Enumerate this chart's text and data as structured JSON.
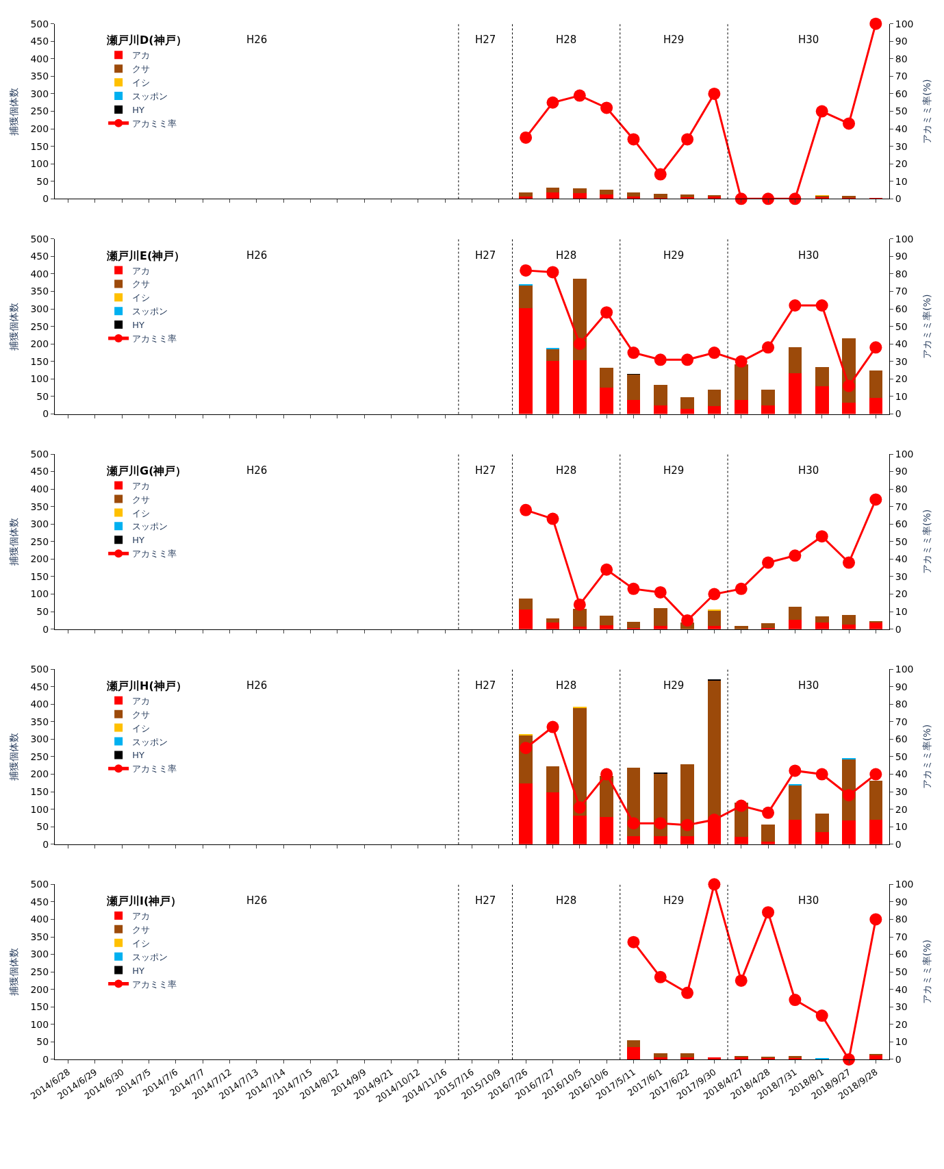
{
  "chart_data": [
    {
      "type": "bar",
      "title": "瀬戸川D(神戸）",
      "ylabel": "捕獲個体数",
      "y2label": "アカミミ率(%)",
      "stacked": true,
      "legend": "top left",
      "tick_labels": "y",
      "categories": [
        "2014/6/28",
        "2014/6/29",
        "2014/6/30",
        "2014/7/5",
        "2014/7/6",
        "2014/7/7",
        "2014/7/12",
        "2014/7/13",
        "2014/7/14",
        "2014/7/15",
        "2014/8/12",
        "2014/9/9",
        "2014/9/21",
        "2014/10/12",
        "2014/11/16",
        "2015/7/16",
        "2015/10/9",
        "2016/7/26",
        "2016/7/27",
        "2016/10/5",
        "2016/10/6",
        "2017/5/11",
        "2017/6/1",
        "2017/6/22",
        "2017/9/30",
        "2018/4/27",
        "2018/4/28",
        "2018/7/31",
        "2018/8/1",
        "2018/9/27",
        "2018/9/28"
      ],
      "ylim": [
        0,
        500
      ],
      "yticks": [
        0,
        50,
        100,
        150,
        200,
        250,
        300,
        350,
        400,
        450,
        500
      ],
      "y2lim": [
        0,
        100
      ],
      "y2ticks": [
        0,
        10,
        20,
        30,
        40,
        50,
        60,
        70,
        80,
        90,
        100
      ],
      "annotations": [
        "H26",
        "H27",
        "H28",
        "H29",
        "H30"
      ],
      "series": [
        {
          "name": "アカ",
          "color": "#ff0000",
          "values": [
            null,
            null,
            null,
            null,
            null,
            null,
            null,
            null,
            null,
            null,
            null,
            null,
            null,
            null,
            null,
            null,
            null,
            6,
            18,
            17,
            13,
            6,
            2,
            4,
            7,
            0,
            0,
            0,
            5,
            3,
            3
          ]
        },
        {
          "name": "クサ",
          "color": "#9c4a0a",
          "values": [
            null,
            null,
            null,
            null,
            null,
            null,
            null,
            null,
            null,
            null,
            null,
            null,
            null,
            null,
            null,
            null,
            null,
            12,
            14,
            13,
            13,
            13,
            13,
            9,
            4,
            0,
            0,
            0,
            5,
            5,
            0
          ]
        },
        {
          "name": "イシ",
          "color": "#ffc000",
          "values": [
            null,
            null,
            null,
            null,
            null,
            null,
            null,
            null,
            null,
            null,
            null,
            null,
            null,
            null,
            null,
            null,
            null,
            0,
            0,
            0,
            0,
            0,
            0,
            0,
            0,
            0,
            0,
            0,
            1,
            0,
            0
          ]
        },
        {
          "name": "スッポン",
          "color": "#00b0f0",
          "values": [
            null,
            null,
            null,
            null,
            null,
            null,
            null,
            null,
            null,
            null,
            null,
            null,
            null,
            null,
            null,
            null,
            null,
            0,
            0,
            0,
            0,
            0,
            0,
            0,
            0,
            0,
            0,
            0,
            0,
            0,
            0
          ]
        },
        {
          "name": "HY",
          "color": "#000000",
          "values": [
            null,
            null,
            null,
            null,
            null,
            null,
            null,
            null,
            null,
            null,
            null,
            null,
            null,
            null,
            null,
            null,
            null,
            0,
            0,
            0,
            0,
            0,
            0,
            0,
            0,
            0,
            0,
            0,
            0,
            0,
            0
          ]
        },
        {
          "name": "アカミミ率",
          "type": "line",
          "axis": "y2",
          "marker": "circle",
          "line_style": "solid",
          "color": "#ff0000",
          "values": [
            null,
            null,
            null,
            null,
            null,
            null,
            null,
            null,
            null,
            null,
            null,
            null,
            null,
            null,
            null,
            null,
            null,
            35,
            55,
            59,
            52,
            34,
            14,
            34,
            60,
            0,
            0,
            0,
            50,
            43,
            100
          ]
        }
      ]
    },
    {
      "type": "bar",
      "title": "瀬戸川E(神戸）",
      "ylabel": "捕獲個体数",
      "y2label": "アカミミ率(%)",
      "stacked": true,
      "legend": "top left",
      "tick_labels": "y",
      "categories": [
        "2014/6/28",
        "2014/6/29",
        "2014/6/30",
        "2014/7/5",
        "2014/7/6",
        "2014/7/7",
        "2014/7/12",
        "2014/7/13",
        "2014/7/14",
        "2014/7/15",
        "2014/8/12",
        "2014/9/9",
        "2014/9/21",
        "2014/10/12",
        "2014/11/16",
        "2015/7/16",
        "2015/10/9",
        "2016/7/26",
        "2016/7/27",
        "2016/10/5",
        "2016/10/6",
        "2017/5/11",
        "2017/6/1",
        "2017/6/22",
        "2017/9/30",
        "2018/4/27",
        "2018/4/28",
        "2018/7/31",
        "2018/8/1",
        "2018/9/27",
        "2018/9/28"
      ],
      "ylim": [
        0,
        500
      ],
      "yticks": [
        0,
        50,
        100,
        150,
        200,
        250,
        300,
        350,
        400,
        450,
        500
      ],
      "y2lim": [
        0,
        100
      ],
      "y2ticks": [
        0,
        10,
        20,
        30,
        40,
        50,
        60,
        70,
        80,
        90,
        100
      ],
      "annotations": [
        "H26",
        "H27",
        "H28",
        "H29",
        "H30"
      ],
      "series": [
        {
          "name": "アカ",
          "color": "#ff0000",
          "values": [
            null,
            null,
            null,
            null,
            null,
            null,
            null,
            null,
            null,
            null,
            null,
            null,
            null,
            null,
            null,
            null,
            null,
            303,
            151,
            154,
            75,
            40,
            25,
            14,
            23,
            40,
            25,
            117,
            80,
            33,
            46
          ]
        },
        {
          "name": "クサ",
          "color": "#9c4a0a",
          "values": [
            null,
            null,
            null,
            null,
            null,
            null,
            null,
            null,
            null,
            null,
            null,
            null,
            null,
            null,
            null,
            null,
            null,
            65,
            35,
            232,
            57,
            73,
            58,
            34,
            46,
            102,
            44,
            74,
            54,
            184,
            78
          ]
        },
        {
          "name": "イシ",
          "color": "#ffc000",
          "values": [
            null,
            null,
            null,
            null,
            null,
            null,
            null,
            null,
            null,
            null,
            null,
            null,
            null,
            null,
            null,
            null,
            null,
            0,
            0,
            0,
            0,
            0,
            0,
            0,
            0,
            0,
            0,
            0,
            0,
            0,
            0
          ]
        },
        {
          "name": "スッポン",
          "color": "#00b0f0",
          "values": [
            null,
            null,
            null,
            null,
            null,
            null,
            null,
            null,
            null,
            null,
            null,
            null,
            null,
            null,
            null,
            null,
            null,
            3,
            2,
            0,
            0,
            0,
            0,
            0,
            0,
            0,
            0,
            0,
            0,
            0,
            0
          ]
        },
        {
          "name": "HY",
          "color": "#000000",
          "values": [
            null,
            null,
            null,
            null,
            null,
            null,
            null,
            null,
            null,
            null,
            null,
            null,
            null,
            null,
            null,
            null,
            null,
            0,
            0,
            0,
            0,
            1,
            0,
            0,
            0,
            0,
            0,
            0,
            0,
            0,
            0
          ]
        },
        {
          "name": "アカミミ率",
          "type": "line",
          "axis": "y2",
          "marker": "circle",
          "line_style": "solid",
          "color": "#ff0000",
          "values": [
            null,
            null,
            null,
            null,
            null,
            null,
            null,
            null,
            null,
            null,
            null,
            null,
            null,
            null,
            null,
            null,
            null,
            82,
            81,
            40,
            58,
            35,
            31,
            31,
            35,
            30,
            38,
            62,
            62,
            16,
            38
          ]
        }
      ]
    },
    {
      "type": "bar",
      "title": "瀬戸川G(神戸）",
      "ylabel": "捕獲個体数",
      "y2label": "アカミミ率(%)",
      "stacked": true,
      "legend": "top left",
      "tick_labels": "y",
      "categories": [
        "2014/6/28",
        "2014/6/29",
        "2014/6/30",
        "2014/7/5",
        "2014/7/6",
        "2014/7/7",
        "2014/7/12",
        "2014/7/13",
        "2014/7/14",
        "2014/7/15",
        "2014/8/12",
        "2014/9/9",
        "2014/9/21",
        "2014/10/12",
        "2014/11/16",
        "2015/7/16",
        "2015/10/9",
        "2016/7/26",
        "2016/7/27",
        "2016/10/5",
        "2016/10/6",
        "2017/5/11",
        "2017/6/1",
        "2017/6/22",
        "2017/9/30",
        "2018/4/27",
        "2018/4/28",
        "2018/7/31",
        "2018/8/1",
        "2018/9/27",
        "2018/9/28"
      ],
      "ylim": [
        0,
        500
      ],
      "yticks": [
        0,
        50,
        100,
        150,
        200,
        250,
        300,
        350,
        400,
        450,
        500
      ],
      "y2lim": [
        0,
        100
      ],
      "y2ticks": [
        0,
        10,
        20,
        30,
        40,
        50,
        60,
        70,
        80,
        90,
        100
      ],
      "annotations": [
        "H26",
        "H27",
        "H28",
        "H29",
        "H30"
      ],
      "series": [
        {
          "name": "アカ",
          "color": "#ff0000",
          "values": [
            null,
            null,
            null,
            null,
            null,
            null,
            null,
            null,
            null,
            null,
            null,
            null,
            null,
            null,
            null,
            null,
            null,
            57,
            19,
            8,
            12,
            3,
            10,
            null,
            10,
            null,
            3,
            26,
            19,
            14,
            18
          ]
        },
        {
          "name": "クサ",
          "color": "#9c4a0a",
          "values": [
            null,
            null,
            null,
            null,
            null,
            null,
            null,
            null,
            null,
            null,
            null,
            null,
            null,
            null,
            null,
            null,
            null,
            30,
            11,
            50,
            27,
            18,
            49,
            19,
            44,
            9,
            14,
            38,
            18,
            26,
            5
          ]
        },
        {
          "name": "イシ",
          "color": "#ffc000",
          "values": [
            null,
            null,
            null,
            null,
            null,
            null,
            null,
            null,
            null,
            null,
            null,
            null,
            null,
            null,
            null,
            null,
            null,
            0,
            0,
            0,
            0,
            0,
            0,
            0,
            1,
            0,
            0,
            0,
            0,
            0,
            0
          ]
        },
        {
          "name": "スッポン",
          "color": "#00b0f0",
          "values": [
            null,
            null,
            null,
            null,
            null,
            null,
            null,
            null,
            null,
            null,
            null,
            null,
            null,
            null,
            null,
            null,
            null,
            0,
            0,
            0,
            0,
            0,
            0,
            0,
            0,
            0,
            0,
            0,
            0,
            0,
            0
          ]
        },
        {
          "name": "HY",
          "color": "#000000",
          "values": [
            null,
            null,
            null,
            null,
            null,
            null,
            null,
            null,
            null,
            null,
            null,
            null,
            null,
            null,
            null,
            null,
            null,
            0,
            0,
            0,
            0,
            0,
            0,
            0,
            0,
            0,
            0,
            0,
            0,
            0,
            0
          ]
        },
        {
          "name": "アカミミ率",
          "type": "line",
          "axis": "y2",
          "marker": "circle",
          "line_style": "solid",
          "color": "#ff0000",
          "values": [
            null,
            null,
            null,
            null,
            null,
            null,
            null,
            null,
            null,
            null,
            null,
            null,
            null,
            null,
            null,
            null,
            null,
            68,
            63,
            14,
            34,
            23,
            21,
            5,
            20,
            23,
            38,
            42,
            53,
            38,
            74
          ]
        }
      ]
    },
    {
      "type": "bar",
      "title": "瀬戸川H(神戸）",
      "ylabel": "捕獲個体数",
      "y2label": "アカミミ率(%)",
      "stacked": true,
      "legend": "top left",
      "tick_labels": "y",
      "categories": [
        "2014/6/28",
        "2014/6/29",
        "2014/6/30",
        "2014/7/5",
        "2014/7/6",
        "2014/7/7",
        "2014/7/12",
        "2014/7/13",
        "2014/7/14",
        "2014/7/15",
        "2014/8/12",
        "2014/9/9",
        "2014/9/21",
        "2014/10/12",
        "2014/11/16",
        "2015/7/16",
        "2015/10/9",
        "2016/7/26",
        "2016/7/27",
        "2016/10/5",
        "2016/10/6",
        "2017/5/11",
        "2017/6/1",
        "2017/6/22",
        "2017/9/30",
        "2018/4/27",
        "2018/4/28",
        "2018/7/31",
        "2018/8/1",
        "2018/9/27",
        "2018/9/28"
      ],
      "ylim": [
        0,
        500
      ],
      "yticks": [
        0,
        50,
        100,
        150,
        200,
        250,
        300,
        350,
        400,
        450,
        500
      ],
      "y2lim": [
        0,
        100
      ],
      "y2ticks": [
        0,
        10,
        20,
        30,
        40,
        50,
        60,
        70,
        80,
        90,
        100
      ],
      "annotations": [
        "H26",
        "H27",
        "H28",
        "H29",
        "H30"
      ],
      "series": [
        {
          "name": "アカ",
          "color": "#ff0000",
          "values": [
            null,
            null,
            null,
            null,
            null,
            null,
            null,
            null,
            null,
            null,
            null,
            null,
            null,
            null,
            null,
            null,
            null,
            173,
            148,
            82,
            77,
            24,
            24,
            24,
            68,
            21,
            8,
            71,
            34,
            68,
            71
          ]
        },
        {
          "name": "クサ",
          "color": "#9c4a0a",
          "values": [
            null,
            null,
            null,
            null,
            null,
            null,
            null,
            null,
            null,
            null,
            null,
            null,
            null,
            null,
            null,
            null,
            null,
            138,
            74,
            308,
            118,
            194,
            178,
            205,
            400,
            97,
            49,
            97,
            53,
            174,
            111
          ]
        },
        {
          "name": "イシ",
          "color": "#ffc000",
          "values": [
            null,
            null,
            null,
            null,
            null,
            null,
            null,
            null,
            null,
            null,
            null,
            null,
            null,
            null,
            null,
            null,
            null,
            2,
            0,
            2,
            0,
            0,
            0,
            0,
            0,
            0,
            0,
            0,
            0,
            0,
            0
          ]
        },
        {
          "name": "スッポン",
          "color": "#00b0f0",
          "values": [
            null,
            null,
            null,
            null,
            null,
            null,
            null,
            null,
            null,
            null,
            null,
            null,
            null,
            null,
            null,
            null,
            null,
            0,
            0,
            0,
            0,
            0,
            0,
            0,
            0,
            0,
            0,
            3,
            0,
            4,
            0
          ]
        },
        {
          "name": "HY",
          "color": "#000000",
          "values": [
            null,
            null,
            null,
            null,
            null,
            null,
            null,
            null,
            null,
            null,
            null,
            null,
            null,
            null,
            null,
            null,
            null,
            0,
            0,
            0,
            0,
            0,
            2,
            0,
            3,
            0,
            0,
            0,
            0,
            0,
            0
          ]
        },
        {
          "name": "アカミミ率",
          "type": "line",
          "axis": "y2",
          "marker": "circle",
          "line_style": "solid",
          "color": "#ff0000",
          "values": [
            null,
            null,
            null,
            null,
            null,
            null,
            null,
            null,
            null,
            null,
            null,
            null,
            null,
            null,
            null,
            null,
            null,
            55,
            67,
            21,
            40,
            12,
            12,
            11,
            14,
            22,
            18,
            42,
            40,
            28,
            40
          ]
        }
      ]
    },
    {
      "type": "bar",
      "title": "瀬戸川I(神戸）",
      "ylabel": "捕獲個体数",
      "y2label": "アカミミ率(%)",
      "stacked": true,
      "legend": "top left",
      "categories": [
        "2014/6/28",
        "2014/6/29",
        "2014/6/30",
        "2014/7/5",
        "2014/7/6",
        "2014/7/7",
        "2014/7/12",
        "2014/7/13",
        "2014/7/14",
        "2014/7/15",
        "2014/8/12",
        "2014/9/9",
        "2014/9/21",
        "2014/10/12",
        "2014/11/16",
        "2015/7/16",
        "2015/10/9",
        "2016/7/26",
        "2016/7/27",
        "2016/10/5",
        "2016/10/6",
        "2017/5/11",
        "2017/6/1",
        "2017/6/22",
        "2017/9/30",
        "2018/4/27",
        "2018/4/28",
        "2018/7/31",
        "2018/8/1",
        "2018/9/27",
        "2018/9/28"
      ],
      "ylim": [
        0,
        500
      ],
      "yticks": [
        0,
        50,
        100,
        150,
        200,
        250,
        300,
        350,
        400,
        450,
        500
      ],
      "y2lim": [
        0,
        100
      ],
      "y2ticks": [
        0,
        10,
        20,
        30,
        40,
        50,
        60,
        70,
        80,
        90,
        100
      ],
      "annotations": [
        "H26",
        "H27",
        "H28",
        "H29",
        "H30"
      ],
      "series": [
        {
          "name": "アカ",
          "color": "#ff0000",
          "values": [
            null,
            null,
            null,
            null,
            null,
            null,
            null,
            null,
            null,
            null,
            null,
            null,
            null,
            null,
            null,
            null,
            null,
            null,
            null,
            null,
            null,
            35,
            6,
            5,
            5,
            5,
            5,
            3,
            1,
            0,
            12
          ]
        },
        {
          "name": "クサ",
          "color": "#9c4a0a",
          "values": [
            null,
            null,
            null,
            null,
            null,
            null,
            null,
            null,
            null,
            null,
            null,
            null,
            null,
            null,
            null,
            null,
            null,
            null,
            null,
            null,
            null,
            19,
            12,
            12,
            0,
            5,
            1,
            7,
            0,
            0,
            3
          ]
        },
        {
          "name": "イシ",
          "color": "#ffc000",
          "values": [
            null,
            null,
            null,
            null,
            null,
            null,
            null,
            null,
            null,
            null,
            null,
            null,
            null,
            null,
            null,
            null,
            null,
            null,
            null,
            null,
            null,
            0,
            0,
            0,
            0,
            0,
            0,
            0,
            0,
            0,
            0
          ]
        },
        {
          "name": "スッポン",
          "color": "#00b0f0",
          "values": [
            null,
            null,
            null,
            null,
            null,
            null,
            null,
            null,
            null,
            null,
            null,
            null,
            null,
            null,
            null,
            null,
            null,
            null,
            null,
            null,
            null,
            0,
            0,
            0,
            0,
            0,
            0,
            0,
            3,
            0,
            0
          ]
        },
        {
          "name": "HY",
          "color": "#000000",
          "values": [
            null,
            null,
            null,
            null,
            null,
            null,
            null,
            null,
            null,
            null,
            null,
            null,
            null,
            null,
            null,
            null,
            null,
            null,
            null,
            null,
            null,
            0,
            0,
            0,
            0,
            0,
            0,
            0,
            0,
            0,
            0
          ]
        },
        {
          "name": "アカミミ率",
          "type": "line",
          "axis": "y2",
          "marker": "circle",
          "line_style": "solid",
          "color": "#ff0000",
          "values": [
            null,
            null,
            null,
            null,
            null,
            null,
            null,
            null,
            null,
            null,
            null,
            null,
            null,
            null,
            null,
            null,
            null,
            null,
            null,
            null,
            null,
            67,
            47,
            38,
            100,
            45,
            84,
            34,
            25,
            0,
            80
          ]
        }
      ]
    }
  ]
}
